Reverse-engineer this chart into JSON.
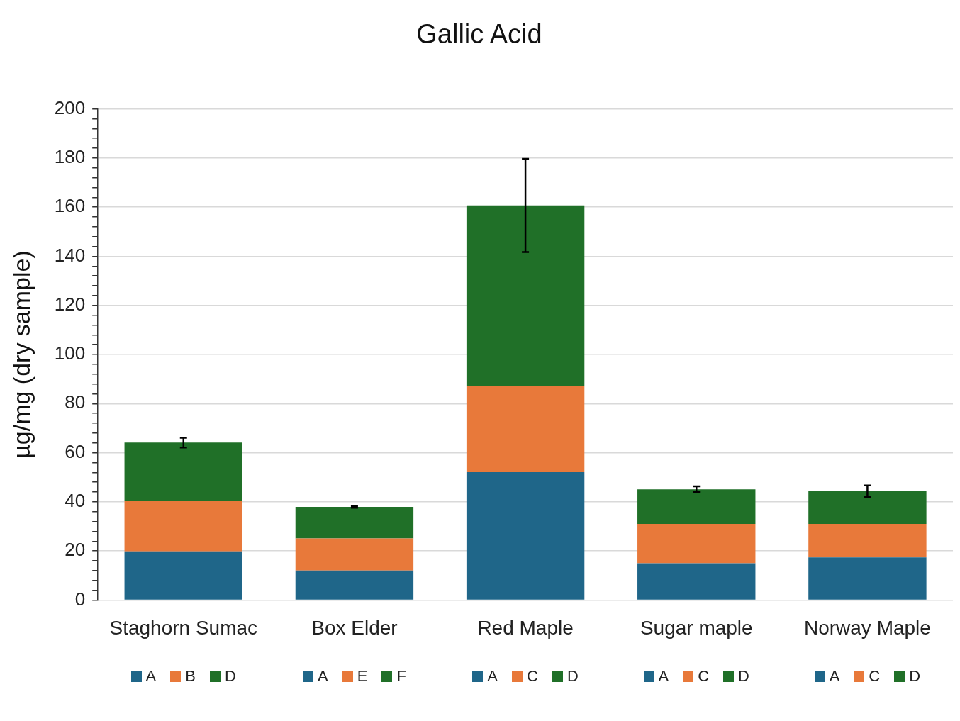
{
  "chart_data": {
    "type": "bar",
    "title": "Gallic Acid",
    "ylabel": "µg/mg (dry sample)",
    "stacked": true,
    "grid": "y",
    "legend": "bottom",
    "categories": [
      "Staghorn Sumac",
      "Box Elder",
      "Red Maple",
      "Sugar maple",
      "Norway Maple"
    ],
    "ylim": [
      0,
      200
    ],
    "yticks": [
      0,
      {
        "value": 4,
        "label": null
      },
      {
        "value": 8,
        "label": null
      },
      {
        "value": 12,
        "label": null
      },
      {
        "value": 16,
        "label": null
      },
      20,
      {
        "value": 24,
        "label": null
      },
      {
        "value": 28,
        "label": null
      },
      {
        "value": 32,
        "label": null
      },
      {
        "value": 36,
        "label": null
      },
      40,
      {
        "value": 44,
        "label": null
      },
      {
        "value": 48,
        "label": null
      },
      {
        "value": 52,
        "label": null
      },
      {
        "value": 56,
        "label": null
      },
      60,
      {
        "value": 64,
        "label": null
      },
      {
        "value": 68,
        "label": null
      },
      {
        "value": 72,
        "label": null
      },
      {
        "value": 76,
        "label": null
      },
      80,
      {
        "value": 84,
        "label": null
      },
      {
        "value": 88,
        "label": null
      },
      {
        "value": 92,
        "label": null
      },
      {
        "value": 96,
        "label": null
      },
      100,
      {
        "value": 104,
        "label": null
      },
      {
        "value": 108,
        "label": null
      },
      {
        "value": 112,
        "label": null
      },
      {
        "value": 116,
        "label": null
      },
      120,
      {
        "value": 124,
        "label": null
      },
      {
        "value": 128,
        "label": null
      },
      {
        "value": 132,
        "label": null
      },
      {
        "value": 136,
        "label": null
      },
      140,
      {
        "value": 144,
        "label": null
      },
      {
        "value": 148,
        "label": null
      },
      {
        "value": 152,
        "label": null
      },
      {
        "value": 156,
        "label": null
      },
      160,
      {
        "value": 164,
        "label": null
      },
      {
        "value": 168,
        "label": null
      },
      {
        "value": 172,
        "label": null
      },
      {
        "value": 176,
        "label": null
      },
      180,
      {
        "value": 184,
        "label": null
      },
      {
        "value": 188,
        "label": null
      },
      {
        "value": 192,
        "label": null
      },
      {
        "value": 196,
        "label": null
      },
      200
    ],
    "series": [
      {
        "name": "A",
        "color": "#1f6689",
        "values": [
          19.8,
          12.0,
          52.1,
          15.0,
          17.4
        ]
      },
      {
        "name": "B",
        "color": "#e8793a",
        "values": [
          20.5,
          null,
          null,
          null,
          null
        ]
      },
      {
        "name": "C",
        "color": "#e8793a",
        "values": [
          null,
          null,
          35.2,
          16.0,
          13.6
        ]
      },
      {
        "name": "E",
        "color": "#e8793a",
        "values": [
          null,
          13.1,
          null,
          null,
          null
        ]
      },
      {
        "name": "D",
        "color": "#207028",
        "values": [
          23.8,
          null,
          73.4,
          14.1,
          13.3
        ],
        "errors": [
          2.0,
          null,
          19,
          1.2,
          2.4
        ]
      },
      {
        "name": "F",
        "color": "#207028",
        "values": [
          null,
          12.8,
          null,
          null,
          null
        ],
        "errors": [
          null,
          0.3,
          null,
          null,
          null
        ]
      }
    ]
  }
}
